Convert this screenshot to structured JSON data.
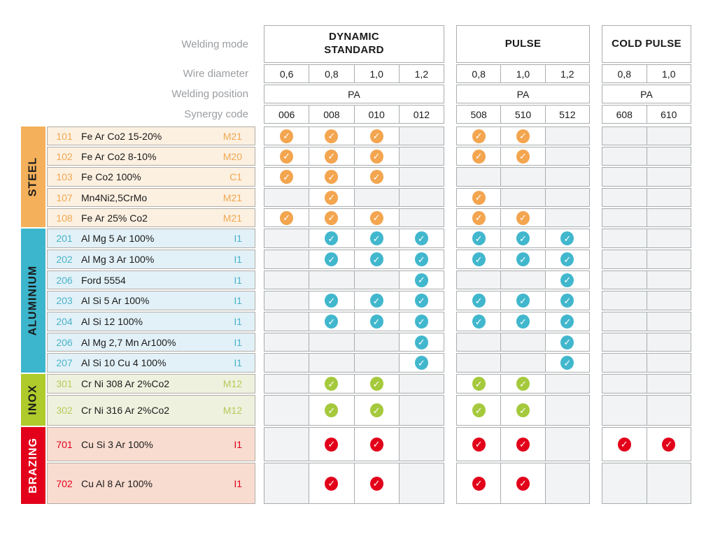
{
  "header": {
    "row_labels": [
      "Welding mode",
      "Wire diameter",
      "Welding position",
      "Synergy code"
    ]
  },
  "mode_groups": [
    {
      "name_lines": [
        "DYNAMIC",
        "STANDARD"
      ],
      "diameters": [
        "0,6",
        "0,8",
        "1,0",
        "1,2"
      ],
      "position": "PA",
      "codes": [
        "006",
        "008",
        "010",
        "012"
      ]
    },
    {
      "name_lines": [
        "PULSE"
      ],
      "diameters": [
        "0,8",
        "1,0",
        "1,2"
      ],
      "position": "PA",
      "codes": [
        "508",
        "510",
        "512"
      ]
    },
    {
      "name_lines": [
        "COLD PULSE"
      ],
      "diameters": [
        "0,8",
        "1,0"
      ],
      "position": "PA",
      "codes": [
        "608",
        "610"
      ]
    }
  ],
  "icons": {
    "check": "✓"
  },
  "sections": [
    {
      "label": "STEEL",
      "label_color": "#1a1a1a",
      "band_color": "#F4B05A",
      "row_bg": "#FCF0E1",
      "text_color": "#F0A850",
      "check_color": "#F3A54F",
      "rows": [
        {
          "code": "101",
          "name": "Fe Ar Co2 15-20%",
          "gas": "M21",
          "checks": [
            [
              1,
              1,
              1,
              0
            ],
            [
              1,
              1,
              0
            ],
            [
              0,
              0
            ]
          ]
        },
        {
          "code": "102",
          "name": "Fe Ar Co2 8-10%",
          "gas": "M20",
          "checks": [
            [
              1,
              1,
              1,
              0
            ],
            [
              1,
              1,
              0
            ],
            [
              0,
              0
            ]
          ]
        },
        {
          "code": "103",
          "name": "Fe Co2 100%",
          "gas": "C1",
          "checks": [
            [
              1,
              1,
              1,
              0
            ],
            [
              0,
              0,
              0
            ],
            [
              0,
              0
            ]
          ]
        },
        {
          "code": "107",
          "name": "Mn4Ni2,5CrMo",
          "gas": "M21",
          "checks": [
            [
              0,
              1,
              0,
              0
            ],
            [
              1,
              0,
              0
            ],
            [
              0,
              0
            ]
          ]
        },
        {
          "code": "108",
          "name": "Fe Ar 25% Co2",
          "gas": "M21",
          "checks": [
            [
              1,
              1,
              1,
              0
            ],
            [
              1,
              1,
              0
            ],
            [
              0,
              0
            ]
          ]
        }
      ]
    },
    {
      "label": "ALUMINIUM",
      "label_color": "#1a1a1a",
      "band_color": "#3CB6CD",
      "row_bg": "#E2F1F8",
      "text_color": "#4AB3C9",
      "check_color": "#41B7CD",
      "rows": [
        {
          "code": "201",
          "name": "Al Mg 5 Ar 100%",
          "gas": "I1",
          "checks": [
            [
              0,
              1,
              1,
              1
            ],
            [
              1,
              1,
              1
            ],
            [
              0,
              0
            ]
          ]
        },
        {
          "code": "202",
          "name": "Al Mg 3 Ar 100%",
          "gas": "I1",
          "checks": [
            [
              0,
              1,
              1,
              1
            ],
            [
              1,
              1,
              1
            ],
            [
              0,
              0
            ]
          ]
        },
        {
          "code": "206",
          "name": "Ford 5554",
          "gas": "I1",
          "checks": [
            [
              0,
              0,
              0,
              1
            ],
            [
              0,
              0,
              1
            ],
            [
              0,
              0
            ]
          ]
        },
        {
          "code": "203",
          "name": "Al Si 5 Ar 100%",
          "gas": "I1",
          "checks": [
            [
              0,
              1,
              1,
              1
            ],
            [
              1,
              1,
              1
            ],
            [
              0,
              0
            ]
          ]
        },
        {
          "code": "204",
          "name": "Al Si 12 100%",
          "gas": "I1",
          "checks": [
            [
              0,
              1,
              1,
              1
            ],
            [
              1,
              1,
              1
            ],
            [
              0,
              0
            ]
          ]
        },
        {
          "code": "206",
          "name": "Al Mg 2,7 Mn Ar100%",
          "gas": "I1",
          "checks": [
            [
              0,
              0,
              0,
              1
            ],
            [
              0,
              0,
              1
            ],
            [
              0,
              0
            ]
          ]
        },
        {
          "code": "207",
          "name": "Al Si 10 Cu 4 100%",
          "gas": "I1",
          "checks": [
            [
              0,
              0,
              0,
              1
            ],
            [
              0,
              0,
              1
            ],
            [
              0,
              0
            ]
          ]
        }
      ]
    },
    {
      "label": "INOX",
      "label_color": "#1a1a1a",
      "band_color": "#AECB2B",
      "row_bg": "#EEF1DE",
      "text_color": "#B7CA57",
      "check_color": "#A5C93C",
      "rows": [
        {
          "code": "301",
          "name": "Cr Ni 308 Ar 2%Co2",
          "gas": "M12",
          "checks": [
            [
              0,
              1,
              1,
              0
            ],
            [
              1,
              1,
              0
            ],
            [
              0,
              0
            ]
          ]
        },
        {
          "code": "302",
          "name": "Cr Ni 316 Ar 2%Co2",
          "gas": "M12",
          "checks": [
            [
              0,
              1,
              1,
              0
            ],
            [
              1,
              1,
              0
            ],
            [
              0,
              0
            ]
          ]
        }
      ]
    },
    {
      "label": "BRAZING",
      "label_color": "#ffffff",
      "band_color": "#E2001A",
      "row_bg": "#F9DCD0",
      "text_color": "#E2001A",
      "check_color": "#E2001A",
      "rows": [
        {
          "code": "701",
          "name": "Cu Si 3 Ar 100%",
          "gas": "I1",
          "checks": [
            [
              0,
              1,
              1,
              0
            ],
            [
              1,
              1,
              0
            ],
            [
              1,
              1
            ]
          ]
        },
        {
          "code": "702",
          "name": "Cu Al 8 Ar 100%",
          "gas": "I1",
          "checks": [
            [
              0,
              1,
              1,
              0
            ],
            [
              1,
              1,
              0
            ],
            [
              0,
              0
            ]
          ]
        }
      ]
    }
  ]
}
